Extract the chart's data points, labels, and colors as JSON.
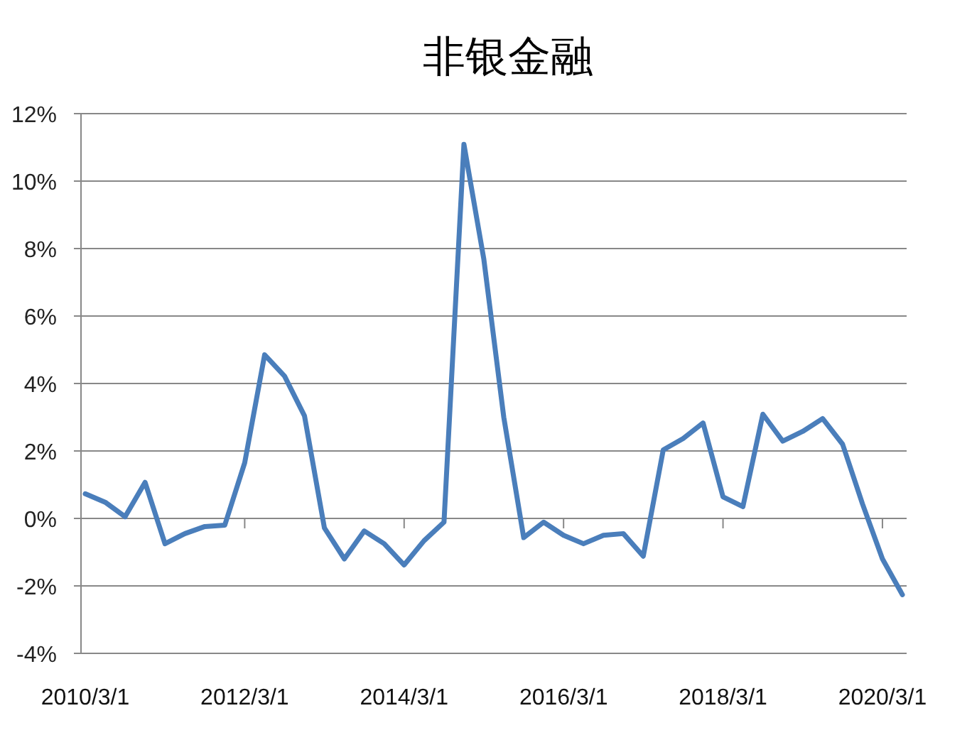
{
  "chart_data": {
    "type": "line",
    "title": "非银金融",
    "categories": [
      "2010/3/1",
      null,
      null,
      null,
      null,
      null,
      null,
      null,
      "2012/3/1",
      null,
      null,
      null,
      null,
      null,
      null,
      null,
      "2014/3/1",
      null,
      null,
      null,
      null,
      null,
      null,
      null,
      "2016/3/1",
      null,
      null,
      null,
      null,
      null,
      null,
      null,
      "2018/3/1",
      null,
      null,
      null,
      null,
      null,
      null,
      null,
      "2020/3/1",
      null
    ],
    "series": [
      {
        "color": "#4a7ebb",
        "values": [
          0.73,
          0.48,
          0.05,
          1.07,
          -0.75,
          -0.45,
          -0.24,
          -0.2,
          1.65,
          4.85,
          4.22,
          3.04,
          -0.28,
          -1.2,
          -0.37,
          -0.75,
          -1.38,
          -0.66,
          -0.11,
          11.09,
          7.68,
          3.0,
          -0.57,
          -0.11,
          -0.5,
          -0.75,
          -0.5,
          -0.45,
          -1.12,
          2.03,
          2.37,
          2.83,
          0.64,
          0.35,
          3.09,
          2.29,
          2.58,
          2.96,
          2.2,
          0.43,
          -1.2,
          -2.26
        ]
      }
    ],
    "ylim": [
      -4,
      12
    ],
    "yticks": [
      {
        "value": -4,
        "label": "-4%"
      },
      {
        "value": -2,
        "label": "-2%"
      },
      {
        "value": 0,
        "label": "0%"
      },
      {
        "value": 2,
        "label": "2%"
      },
      {
        "value": 4,
        "label": "4%"
      },
      {
        "value": 6,
        "label": "6%"
      },
      {
        "value": 8,
        "label": "8%"
      },
      {
        "value": 10,
        "label": "10%"
      },
      {
        "value": 12,
        "label": "12%"
      }
    ],
    "grid": "y"
  }
}
